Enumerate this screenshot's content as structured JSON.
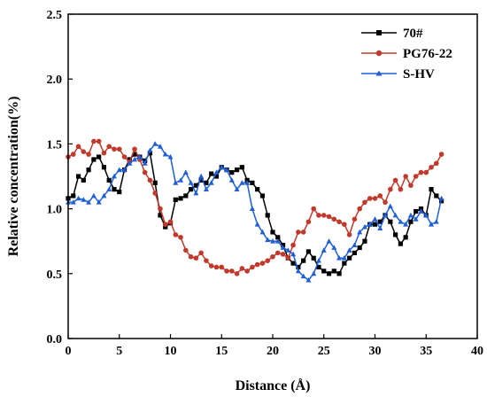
{
  "chart_data": {
    "type": "line",
    "xlabel": "Distance (Å)",
    "ylabel": "Relative concentration(%)",
    "xlim": [
      0,
      40
    ],
    "ylim": [
      0.0,
      2.5
    ],
    "xticks": [
      "0",
      "5",
      "10",
      "15",
      "20",
      "25",
      "30",
      "35",
      "40"
    ],
    "yticks": [
      "0.0",
      "0.5",
      "1.0",
      "1.5",
      "2.0",
      "2.5"
    ],
    "grid": false,
    "legend_position": "top-right",
    "series": [
      {
        "name": "70#",
        "color": "#000000",
        "marker": "square",
        "x": [
          0,
          0.5,
          1,
          1.5,
          2,
          2.5,
          3,
          3.5,
          4,
          4.5,
          5,
          5.5,
          6,
          6.5,
          7,
          7.5,
          8,
          8.5,
          9,
          9.5,
          10,
          10.5,
          11,
          11.5,
          12,
          12.5,
          13,
          13.5,
          14,
          14.5,
          15,
          15.5,
          16,
          16.5,
          17,
          17.5,
          18,
          18.5,
          19,
          19.5,
          20,
          20.5,
          21,
          21.5,
          22,
          22.5,
          23,
          23.5,
          24,
          24.5,
          25,
          25.5,
          26,
          26.5,
          27,
          27.5,
          28,
          28.5,
          29,
          29.5,
          30,
          30.5,
          31,
          31.5,
          32,
          32.5,
          33,
          33.5,
          34,
          34.5,
          35,
          35.5,
          36,
          36.5
        ],
        "y": [
          1.08,
          1.1,
          1.25,
          1.22,
          1.3,
          1.38,
          1.4,
          1.32,
          1.22,
          1.15,
          1.13,
          1.3,
          1.38,
          1.42,
          1.4,
          1.37,
          1.43,
          1.2,
          0.95,
          0.86,
          0.89,
          1.07,
          1.08,
          1.1,
          1.15,
          1.18,
          1.22,
          1.2,
          1.27,
          1.25,
          1.32,
          1.3,
          1.28,
          1.3,
          1.32,
          1.22,
          1.2,
          1.15,
          1.1,
          0.95,
          0.82,
          0.78,
          0.72,
          0.62,
          0.58,
          0.55,
          0.6,
          0.67,
          0.62,
          0.55,
          0.52,
          0.5,
          0.52,
          0.5,
          0.58,
          0.62,
          0.66,
          0.7,
          0.75,
          0.88,
          0.88,
          0.9,
          0.95,
          0.9,
          0.8,
          0.73,
          0.78,
          0.9,
          0.98,
          1.0,
          0.95,
          1.15,
          1.1,
          1.06
        ]
      },
      {
        "name": "PG76-22",
        "color": "#c0392b",
        "marker": "circle",
        "x": [
          0,
          0.5,
          1,
          1.5,
          2,
          2.5,
          3,
          3.5,
          4,
          4.5,
          5,
          5.5,
          6,
          6.5,
          7,
          7.5,
          8,
          8.5,
          9,
          9.5,
          10,
          10.5,
          11,
          11.5,
          12,
          12.5,
          13,
          13.5,
          14,
          14.5,
          15,
          15.5,
          16,
          16.5,
          17,
          17.5,
          18,
          18.5,
          19,
          19.5,
          20,
          20.5,
          21,
          21.5,
          22,
          22.5,
          23,
          23.5,
          24,
          24.5,
          25,
          25.5,
          26,
          26.5,
          27,
          27.5,
          28,
          28.5,
          29,
          29.5,
          30,
          30.5,
          31,
          31.5,
          32,
          32.5,
          33,
          33.5,
          34,
          34.5,
          35,
          35.5,
          36,
          36.5
        ],
        "y": [
          1.4,
          1.42,
          1.48,
          1.44,
          1.42,
          1.52,
          1.52,
          1.43,
          1.48,
          1.46,
          1.46,
          1.4,
          1.36,
          1.46,
          1.38,
          1.28,
          1.22,
          1.12,
          1.0,
          0.88,
          0.9,
          0.8,
          0.78,
          0.68,
          0.63,
          0.62,
          0.66,
          0.6,
          0.56,
          0.55,
          0.55,
          0.52,
          0.52,
          0.5,
          0.54,
          0.52,
          0.55,
          0.57,
          0.58,
          0.6,
          0.63,
          0.66,
          0.65,
          0.62,
          0.72,
          0.82,
          0.82,
          0.9,
          1.0,
          0.95,
          0.95,
          0.94,
          0.92,
          0.9,
          0.88,
          0.8,
          0.92,
          1.0,
          1.05,
          1.08,
          1.08,
          1.1,
          1.05,
          1.15,
          1.22,
          1.15,
          1.25,
          1.18,
          1.25,
          1.28,
          1.28,
          1.32,
          1.35,
          1.42
        ]
      },
      {
        "name": "S-HV",
        "color": "#1f5fd6",
        "marker": "triangle",
        "x": [
          0,
          0.5,
          1,
          1.5,
          2,
          2.5,
          3,
          3.5,
          4,
          4.5,
          5,
          5.5,
          6,
          6.5,
          7,
          7.5,
          8,
          8.5,
          9,
          9.5,
          10,
          10.5,
          11,
          11.5,
          12,
          12.5,
          13,
          13.5,
          14,
          14.5,
          15,
          15.5,
          16,
          16.5,
          17,
          17.5,
          18,
          18.5,
          19,
          19.5,
          20,
          20.5,
          21,
          21.5,
          22,
          22.5,
          23,
          23.5,
          24,
          24.5,
          25,
          25.5,
          26,
          26.5,
          27,
          27.5,
          28,
          28.5,
          29,
          29.5,
          30,
          30.5,
          31,
          31.5,
          32,
          32.5,
          33,
          33.5,
          34,
          34.5,
          35,
          35.5,
          36,
          36.5
        ],
        "y": [
          1.05,
          1.05,
          1.08,
          1.07,
          1.05,
          1.1,
          1.05,
          1.1,
          1.15,
          1.25,
          1.3,
          1.3,
          1.35,
          1.38,
          1.4,
          1.35,
          1.45,
          1.5,
          1.48,
          1.42,
          1.4,
          1.2,
          1.22,
          1.28,
          1.2,
          1.12,
          1.25,
          1.15,
          1.2,
          1.28,
          1.32,
          1.3,
          1.22,
          1.15,
          1.2,
          1.2,
          1.0,
          0.88,
          0.82,
          0.76,
          0.75,
          0.75,
          0.7,
          0.68,
          0.65,
          0.52,
          0.48,
          0.45,
          0.5,
          0.6,
          0.68,
          0.75,
          0.7,
          0.62,
          0.62,
          0.68,
          0.72,
          0.82,
          0.86,
          0.88,
          0.92,
          0.85,
          0.95,
          1.02,
          0.95,
          0.9,
          0.88,
          0.95,
          0.92,
          0.98,
          0.95,
          0.88,
          0.9,
          1.08
        ]
      }
    ]
  }
}
